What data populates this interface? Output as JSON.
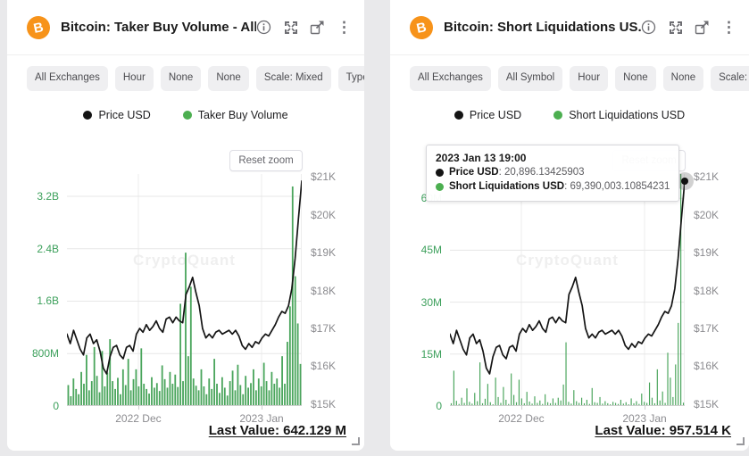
{
  "page": {
    "background": "#e9e9eb",
    "brand_colors": {
      "bitcoin_orange": "#f7931a",
      "series_green": "#4aa55c",
      "series_black": "#141414"
    }
  },
  "panels": [
    {
      "header": {
        "title": "Bitcoin: Taker Buy Volume - All...",
        "coin_symbol": "B"
      },
      "chips": [
        "All Exchanges",
        "Hour",
        "None",
        "None",
        "Scale: Mixed",
        "Type: Bar"
      ],
      "legend": [
        {
          "label": "Price USD",
          "color": "#141414"
        },
        {
          "label": "Taker Buy Volume",
          "color": "#4caf50"
        }
      ],
      "reset_zoom": "Reset zoom",
      "watermark": "CryptoQuant",
      "last_value": "Last Value: 642.129 M"
    },
    {
      "header": {
        "title": "Bitcoin: Short Liquidations US...",
        "coin_symbol": "B"
      },
      "chips": [
        "All Exchanges",
        "All Symbol",
        "Hour",
        "None",
        "None",
        "Scale: Mixed"
      ],
      "legend": [
        {
          "label": "Price USD",
          "color": "#141414"
        },
        {
          "label": "Short Liquidations USD",
          "color": "#4caf50"
        }
      ],
      "tooltip": {
        "title": "2023 Jan 13 19:00",
        "rows": [
          {
            "color": "#141414",
            "label": "Price USD",
            "value": ": 20,896.13425903"
          },
          {
            "color": "#4caf50",
            "label": "Short Liquidations USD",
            "value": ": 69,390,003.10854231"
          }
        ]
      },
      "reset_zoom": "Reset zoom",
      "watermark": "CryptoQuant",
      "last_value": "Last Value: 957.514 K"
    }
  ],
  "chart_data": [
    {
      "type": "line+bar",
      "title": "Bitcoin: Taker Buy Volume - All Exchanges",
      "x_ticks": [
        "2022 Dec",
        "2023 Jan"
      ],
      "x_tick_positions": [
        0.304,
        0.829
      ],
      "grid": true,
      "legend_position": "top-center",
      "left_axis": {
        "name": "Taker Buy Volume",
        "unit": "USD (M)",
        "ticks": [
          "0",
          "800M",
          "1.6B",
          "2.4B",
          "3.2B"
        ],
        "tick_values": [
          0,
          800,
          1600,
          2400,
          3200
        ],
        "plot_max": 3540
      },
      "right_axis": {
        "name": "Price USD",
        "unit": "USD (K)",
        "ticks": [
          "$15K",
          "$16K",
          "$17K",
          "$18K",
          "$19K",
          "$20K",
          "$21K"
        ],
        "tick_values": [
          15,
          16,
          17,
          18,
          19,
          20,
          21
        ],
        "plot_min": 14.95,
        "plot_max": 21.08
      },
      "last_value": "642.129 M",
      "series": [
        {
          "name": "Price USD",
          "type": "line",
          "axis": "right",
          "color": "#141414",
          "values": [
            16.85,
            16.6,
            16.95,
            16.7,
            16.45,
            16.3,
            16.75,
            16.85,
            16.6,
            16.7,
            16.4,
            15.95,
            15.8,
            16.25,
            16.5,
            16.55,
            16.3,
            16.2,
            16.5,
            16.55,
            16.4,
            16.85,
            17.0,
            16.9,
            17.1,
            16.95,
            17.05,
            17.2,
            17.0,
            16.9,
            17.25,
            17.3,
            17.15,
            17.3,
            17.2,
            17.15,
            17.9,
            18.1,
            18.35,
            17.95,
            17.6,
            17.0,
            16.75,
            16.85,
            16.75,
            16.9,
            16.95,
            16.85,
            16.9,
            16.95,
            16.85,
            16.95,
            16.8,
            16.55,
            16.45,
            16.6,
            16.5,
            16.65,
            16.6,
            16.75,
            16.85,
            16.8,
            16.95,
            17.1,
            17.3,
            17.45,
            17.4,
            17.6,
            18.05,
            18.85,
            19.9,
            20.896
          ]
        },
        {
          "name": "Taker Buy Volume",
          "type": "bar",
          "axis": "left",
          "color": "#4aa55c",
          "bar_fill": 0.62,
          "values": [
            320,
            150,
            420,
            260,
            180,
            520,
            340,
            780,
            240,
            380,
            900,
            460,
            210,
            840,
            300,
            510,
            1020,
            380,
            260,
            430,
            180,
            560,
            320,
            720,
            240,
            410,
            560,
            300,
            880,
            340,
            260,
            190,
            440,
            280,
            350,
            230,
            620,
            410,
            280,
            520,
            340,
            480,
            290,
            1560,
            380,
            2340,
            760,
            1820,
            420,
            310,
            240,
            560,
            300,
            180,
            420,
            260,
            720,
            340,
            200,
            440,
            280,
            160,
            380,
            540,
            240,
            630,
            320,
            180,
            460,
            280,
            350,
            560,
            240,
            420,
            300,
            660,
            380,
            240,
            520,
            340,
            420,
            280,
            760,
            340,
            980,
            1520,
            3350,
            1980,
            1260,
            642
          ]
        }
      ]
    },
    {
      "type": "line+bar",
      "title": "Bitcoin: Short Liquidations USD",
      "x_ticks": [
        "2022 Dec",
        "2023 Jan"
      ],
      "x_tick_positions": [
        0.304,
        0.829
      ],
      "grid": true,
      "legend_position": "top-center",
      "left_axis": {
        "name": "Short Liquidations USD",
        "unit": "USD (M)",
        "ticks": [
          "0",
          "15M",
          "30M",
          "45M",
          "60M"
        ],
        "tick_values": [
          0,
          15,
          30,
          45,
          60
        ],
        "plot_max": 67
      },
      "right_axis": {
        "name": "Price USD",
        "unit": "USD (K)",
        "ticks": [
          "$15K",
          "$16K",
          "$17K",
          "$18K",
          "$19K",
          "$20K",
          "$21K"
        ],
        "tick_values": [
          15,
          16,
          17,
          18,
          19,
          20,
          21
        ],
        "plot_min": 14.95,
        "plot_max": 21.08
      },
      "last_value": "957.514 K",
      "marker": {
        "x_fraction": 1.0,
        "price": 20.896
      },
      "series": [
        {
          "name": "Price USD",
          "type": "line",
          "axis": "right",
          "color": "#141414",
          "values": [
            16.85,
            16.6,
            16.95,
            16.7,
            16.45,
            16.3,
            16.75,
            16.85,
            16.6,
            16.7,
            16.4,
            15.95,
            15.8,
            16.25,
            16.5,
            16.55,
            16.3,
            16.2,
            16.5,
            16.55,
            16.4,
            16.85,
            17.0,
            16.9,
            17.1,
            16.95,
            17.05,
            17.2,
            17.0,
            16.9,
            17.25,
            17.3,
            17.15,
            17.3,
            17.2,
            17.15,
            17.9,
            18.1,
            18.35,
            17.95,
            17.6,
            17.0,
            16.75,
            16.85,
            16.75,
            16.9,
            16.95,
            16.85,
            16.9,
            16.95,
            16.85,
            16.95,
            16.8,
            16.55,
            16.45,
            16.6,
            16.5,
            16.65,
            16.6,
            16.75,
            16.85,
            16.8,
            16.95,
            17.1,
            17.3,
            17.45,
            17.4,
            17.6,
            18.05,
            18.85,
            19.9,
            20.896
          ]
        },
        {
          "name": "Short Liquidations USD",
          "type": "bar",
          "axis": "left",
          "color": "#4aa55c",
          "bar_fill": 0.4,
          "values": [
            0.8,
            10.2,
            1.5,
            0.6,
            2.4,
            0.9,
            5.1,
            1.2,
            0.7,
            3.8,
            1.4,
            12.6,
            0.8,
            2.1,
            6.4,
            1.1,
            0.5,
            8.2,
            2.6,
            0.9,
            5.5,
            1.8,
            0.6,
            9.4,
            3.2,
            1.1,
            7.6,
            2.2,
            0.8,
            4.1,
            1.3,
            0.7,
            2.8,
            0.9,
            1.6,
            0.6,
            3.4,
            1.1,
            0.8,
            2.2,
            0.9,
            2.4,
            1.6,
            6.2,
            18.4,
            1.2,
            0.7,
            4.6,
            1.4,
            0.9,
            2.4,
            0.8,
            1.8,
            0.6,
            5.2,
            1.1,
            0.9,
            2.6,
            0.7,
            1.4,
            0.8,
            0.5,
            1.2,
            0.9,
            0.6,
            1.8,
            0.7,
            1.1,
            0.5,
            2.2,
            0.8,
            1.4,
            0.6,
            3.6,
            1.2,
            0.9,
            6.8,
            2.4,
            0.8,
            10.6,
            1.6,
            4.2,
            0.9,
            15.4,
            8.2,
            2.6,
            12.0,
            24.0,
            69.39,
            0.96
          ]
        }
      ]
    }
  ]
}
